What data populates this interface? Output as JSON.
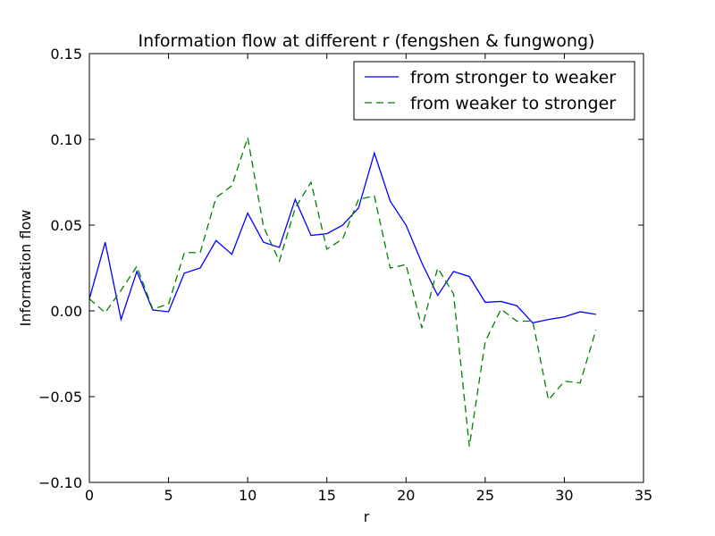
{
  "chart_data": {
    "type": "line",
    "title": "Information flow at different r (fengshen & fungwong)",
    "xlabel": "r",
    "ylabel": "Information flow",
    "xlim": [
      0,
      35
    ],
    "ylim": [
      -0.1,
      0.15
    ],
    "xticks": [
      0,
      5,
      10,
      15,
      20,
      25,
      30,
      35
    ],
    "xtick_labels": [
      "0",
      "5",
      "10",
      "15",
      "20",
      "25",
      "30",
      "35"
    ],
    "yticks": [
      -0.1,
      -0.05,
      0.0,
      0.05,
      0.1,
      0.15
    ],
    "ytick_labels": [
      "−0.10",
      "−0.05",
      "0.00",
      "0.05",
      "0.10",
      "0.15"
    ],
    "grid": false,
    "legend_position": "top-right",
    "x": [
      0,
      1,
      2,
      3,
      4,
      5,
      6,
      7,
      8,
      9,
      10,
      11,
      12,
      13,
      14,
      15,
      16,
      17,
      18,
      19,
      20,
      21,
      22,
      23,
      24,
      25,
      26,
      27,
      28,
      29,
      30,
      31,
      32
    ],
    "series": [
      {
        "name": "from stronger to weaker",
        "color": "#0000ff",
        "dash": "solid",
        "values": [
          0.007,
          0.04,
          -0.005,
          0.023,
          0.0005,
          -0.0005,
          0.022,
          0.025,
          0.041,
          0.033,
          0.057,
          0.04,
          0.037,
          0.065,
          0.044,
          0.045,
          0.05,
          0.06,
          0.092,
          0.064,
          0.05,
          0.028,
          0.009,
          0.023,
          0.02,
          0.005,
          0.0055,
          0.003,
          -0.007,
          -0.005,
          -0.0035,
          -0.0005,
          -0.002
        ]
      },
      {
        "name": "from weaker to stronger",
        "color": "#008000",
        "dash": "dashed",
        "values": [
          0.007,
          -0.001,
          0.012,
          0.026,
          0.001,
          0.004,
          0.034,
          0.034,
          0.066,
          0.073,
          0.101,
          0.049,
          0.029,
          0.06,
          0.075,
          0.036,
          0.042,
          0.065,
          0.067,
          0.025,
          0.027,
          -0.01,
          0.025,
          0.01,
          -0.079,
          -0.018,
          0.001,
          -0.006,
          -0.006,
          -0.052,
          -0.041,
          -0.042,
          -0.011
        ]
      }
    ]
  }
}
